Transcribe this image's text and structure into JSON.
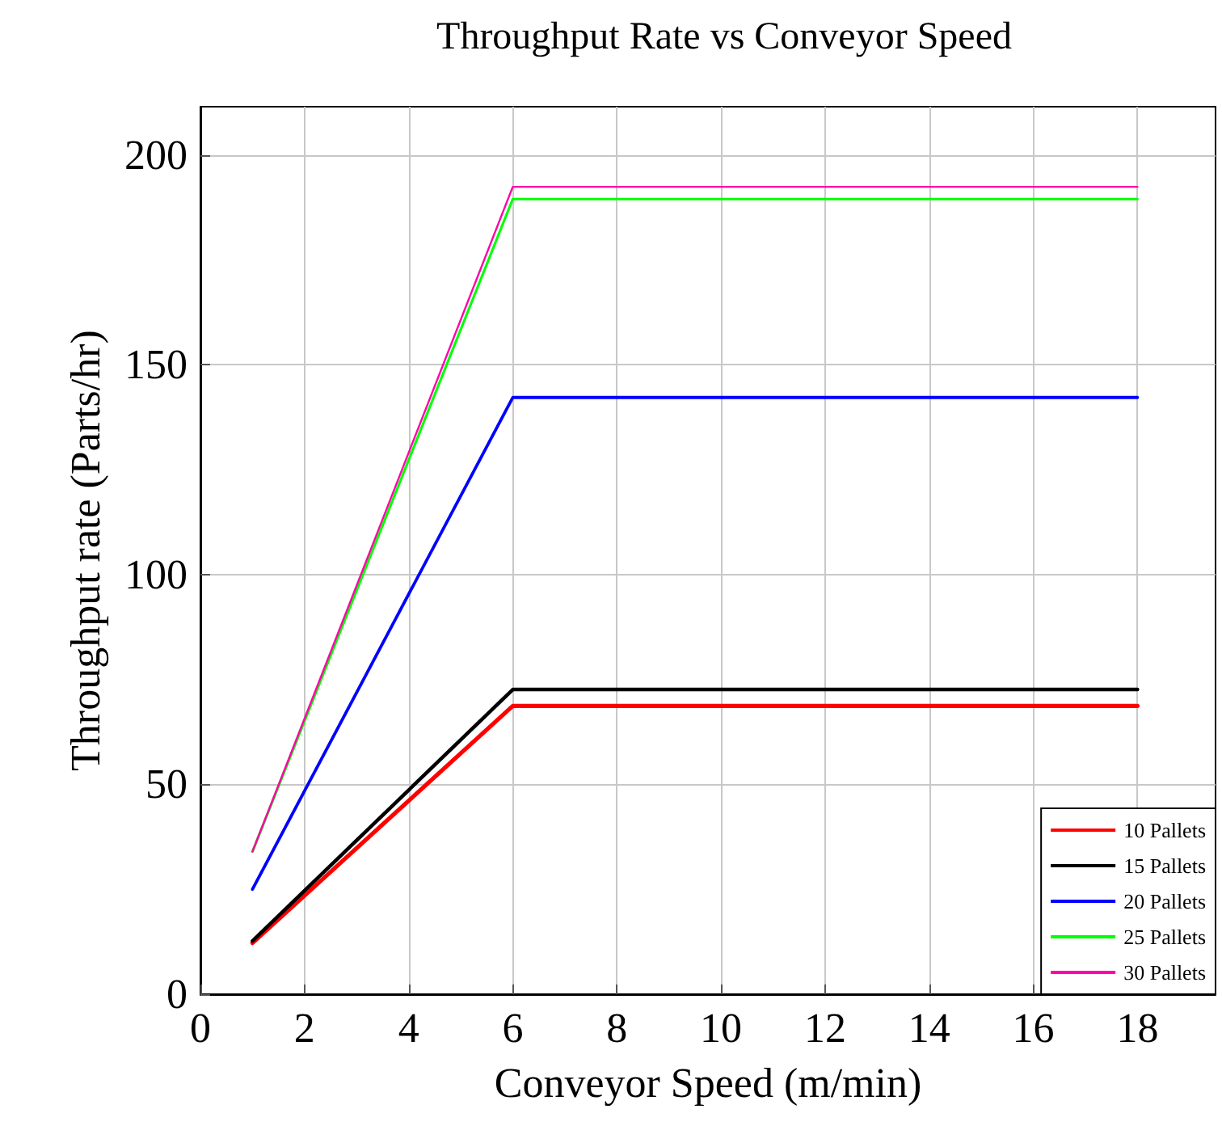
{
  "chart_data": {
    "type": "line",
    "title": "Throughput Rate vs Conveyor Speed",
    "xlabel": "Conveyor Speed (m/min)",
    "ylabel": "Throughput rate (Parts/hr)",
    "x": [
      1,
      6,
      18
    ],
    "series": [
      {
        "name": "10 Pallets",
        "color": "#ff0000",
        "values": [
          12.2,
          68.7,
          68.7
        ]
      },
      {
        "name": "15 Pallets",
        "color": "#000000",
        "values": [
          12.7,
          72.6,
          72.6
        ]
      },
      {
        "name": "20 Pallets",
        "color": "#0000ff",
        "values": [
          25,
          142.2,
          142.2
        ]
      },
      {
        "name": "25 Pallets",
        "color": "#00ff00",
        "values": [
          34,
          189.5,
          189.5
        ]
      },
      {
        "name": "30 Pallets",
        "color": "#ff00aa",
        "values": [
          34,
          192.4,
          192.4
        ]
      }
    ],
    "xlim": [
      0,
      19.5
    ],
    "xticks": [
      0,
      2,
      4,
      6,
      8,
      10,
      12,
      14,
      16,
      18
    ],
    "ylim": [
      0,
      211.5
    ],
    "yticks": [
      0,
      50,
      100,
      150,
      200
    ],
    "grid": true,
    "legend": "bottom right",
    "marker": "none",
    "line_style": "solid"
  }
}
